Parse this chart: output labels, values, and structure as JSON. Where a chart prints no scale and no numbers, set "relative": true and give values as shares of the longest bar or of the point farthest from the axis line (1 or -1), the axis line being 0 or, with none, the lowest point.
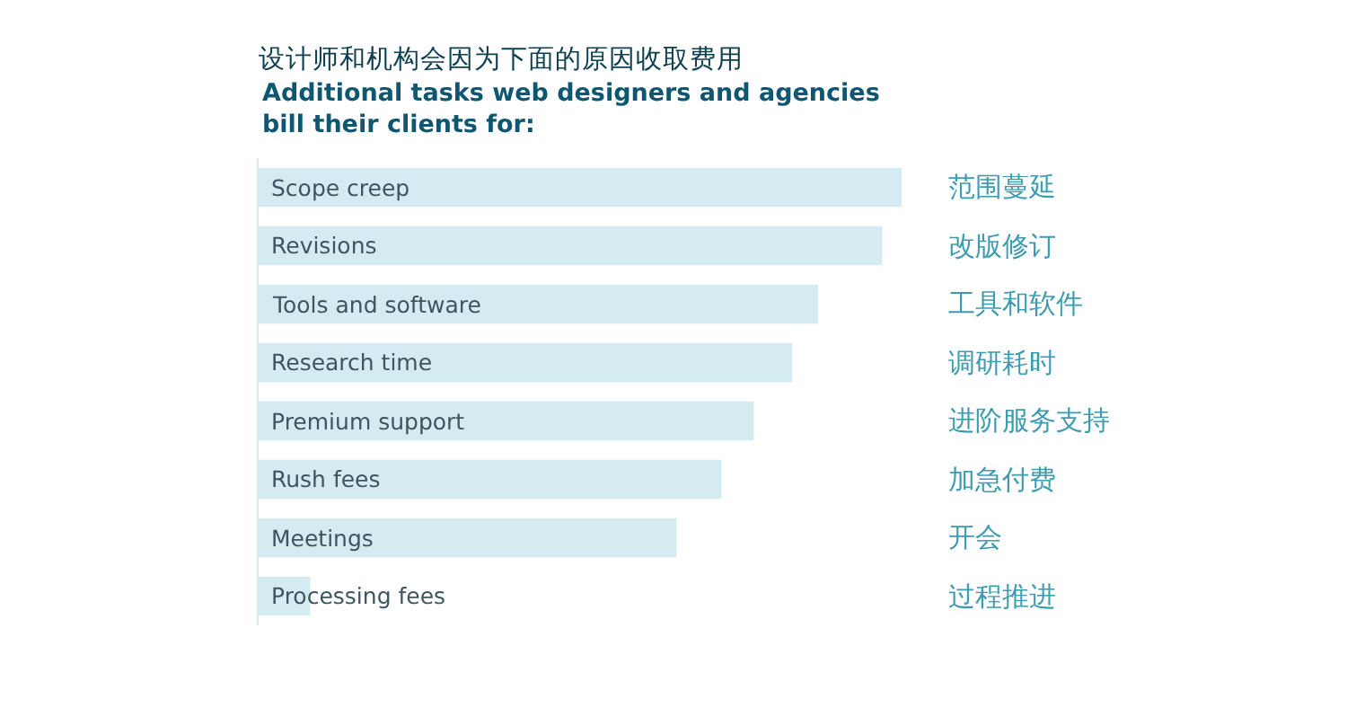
{
  "chart_data": {
    "type": "bar",
    "orientation": "horizontal",
    "relative": true,
    "title": "设计师和机构会因为下面的原因收取费用",
    "subtitle": "Additional tasks web designers and agencies bill their clients for:",
    "categories": [
      "Scope creep",
      "Revisions",
      "Tools and software",
      "Research time",
      "Premium support",
      "Rush fees",
      "Meetings",
      "Processing fees"
    ],
    "values": [
      1,
      0.97,
      0.87,
      0.83,
      0.77,
      0.72,
      0.65,
      0.08
    ],
    "color": "#d4ecf1",
    "annotations": [
      "范围蔓延",
      "改版修订",
      "工具和软件",
      "调研耗时",
      "进阶服务支持",
      "加急付费",
      "开会",
      "过程推进"
    ]
  }
}
